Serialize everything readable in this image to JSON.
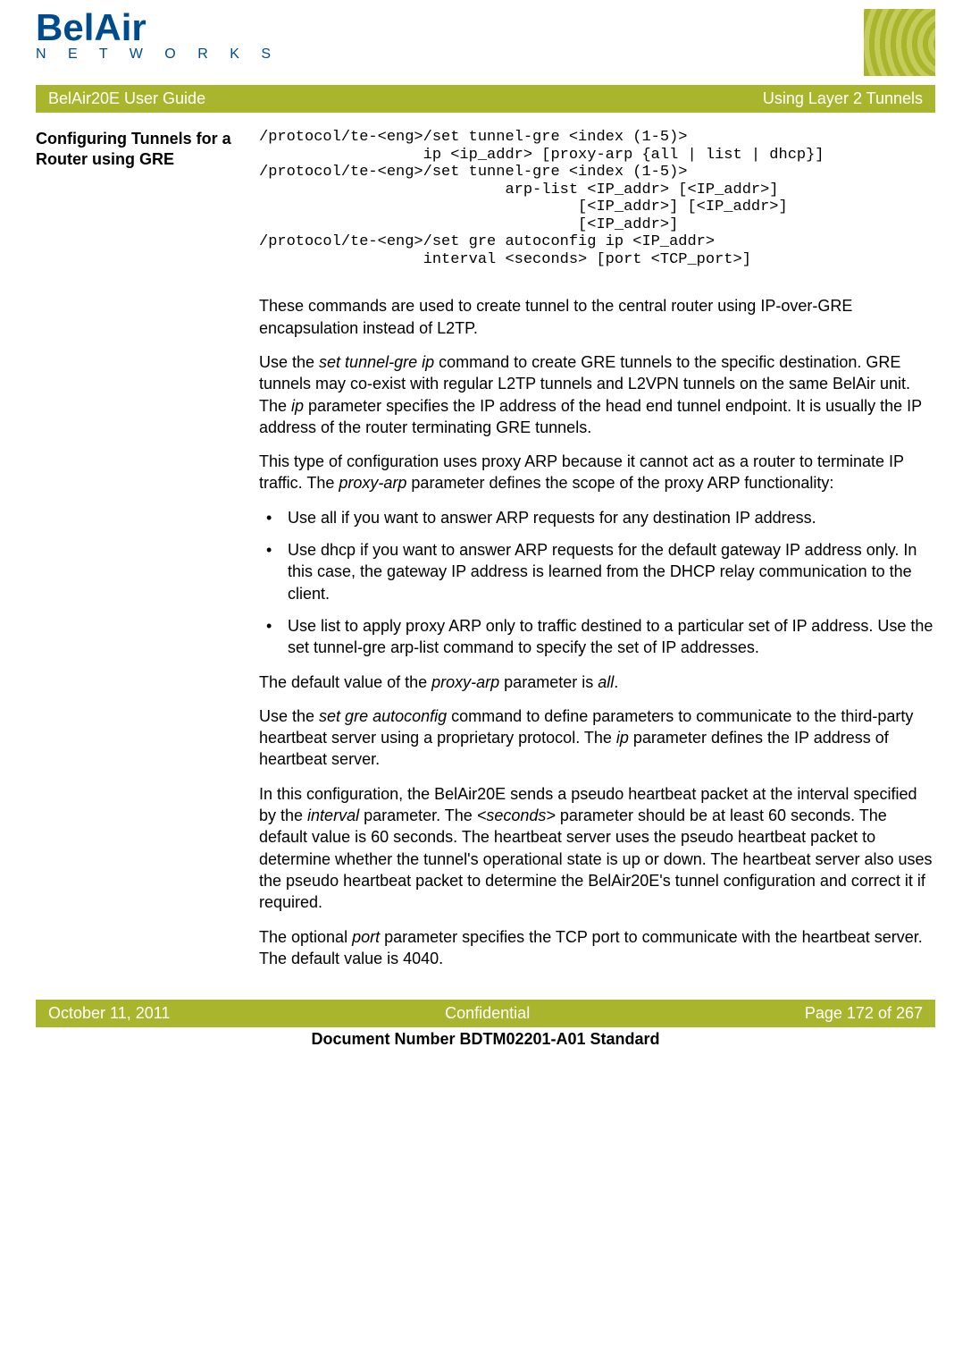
{
  "logo": {
    "name": "BelAir",
    "tagline": "N E T W O R K S"
  },
  "titleBar": {
    "left": "BelAir20E User Guide",
    "right": "Using Layer 2 Tunnels"
  },
  "sectionTitle": "Configuring Tunnels for a Router using GRE",
  "code": "/protocol/te-<eng>/set tunnel-gre <index (1-5)>\n                  ip <ip_addr> [proxy-arp {all | list | dhcp}]\n/protocol/te-<eng>/set tunnel-gre <index (1-5)>\n                           arp-list <IP_addr> [<IP_addr>]\n                                   [<IP_addr>] [<IP_addr>]\n                                   [<IP_addr>]\n/protocol/te-<eng>/set gre autoconfig ip <IP_addr>\n                  interval <seconds> [port <TCP_port>]",
  "para1": "These commands are used to create tunnel to the central router using IP-over-GRE encapsulation instead of L2TP.",
  "para2_a": "Use the ",
  "para2_i1": "set tunnel-gre ip",
  "para2_b": " command to create GRE tunnels to the specific destination. GRE tunnels may co-exist with regular L2TP tunnels and L2VPN tunnels on the same BelAir unit. The ",
  "para2_i2": "ip",
  "para2_c": " parameter specifies the IP address of the head end tunnel endpoint. It is usually the IP address of the router terminating GRE tunnels.",
  "para3_a": "This type of configuration uses proxy ARP because it cannot act as a router to terminate IP traffic. The ",
  "para3_i1": "proxy-arp",
  "para3_b": " parameter defines the scope of the proxy ARP functionality:",
  "b1_a": "Use ",
  "b1_i": "all",
  "b1_b": " if you want to answer ARP requests for any destination IP address.",
  "b2_a": "Use ",
  "b2_i": "dhcp",
  "b2_b": " if you want to answer ARP requests for the default gateway IP address only. In this case, the gateway IP address is learned from the DHCP relay communication to the client.",
  "b3_a": "Use ",
  "b3_i": "list",
  "b3_b": " to apply proxy ARP only to traffic destined to a particular set of IP address. Use the ",
  "b3_i2": "set tunnel-gre arp-list",
  "b3_c": " command to specify the set of IP addresses.",
  "para4_a": "The default value of the ",
  "para4_i1": "proxy-arp",
  "para4_b": " parameter is ",
  "para4_i2": "all",
  "para4_c": ".",
  "para5_a": "Use the ",
  "para5_i1": "set gre autoconfig",
  "para5_b": " command to define parameters to communicate to the third-party heartbeat server using a proprietary protocol. The ",
  "para5_i2": "ip",
  "para5_c": " parameter defines the IP address of heartbeat server.",
  "para6_a": "In this configuration, the BelAir20E sends a pseudo heartbeat packet at the interval specified by the ",
  "para6_i1": "interval",
  "para6_b": " parameter. The ",
  "para6_i2": "<seconds>",
  "para6_c": " parameter should be at least 60 seconds. The default value is 60 seconds. The heartbeat server uses the pseudo heartbeat packet to determine whether the tunnel's operational state is up or down. The heartbeat server also uses the pseudo heartbeat packet to determine the BelAir20E's tunnel configuration and correct it if required.",
  "para7_a": "The optional ",
  "para7_i1": "port",
  "para7_b": " parameter specifies the TCP port to communicate with the heartbeat server. The default value is 4040.",
  "footerBar": {
    "left": "October 11, 2011",
    "center": "Confidential",
    "right": "Page 172 of 267"
  },
  "docNumber": "Document Number BDTM02201-A01 Standard"
}
